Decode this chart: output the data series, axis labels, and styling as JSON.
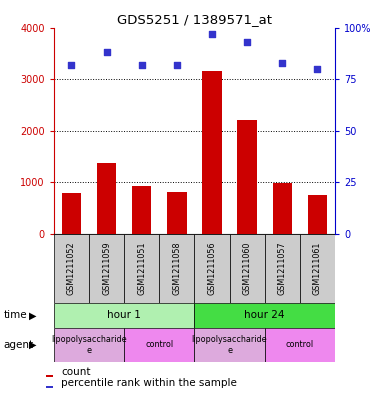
{
  "title": "GDS5251 / 1389571_at",
  "bar_values": [
    800,
    1380,
    930,
    820,
    3150,
    2200,
    990,
    760
  ],
  "percentile_values": [
    82,
    88,
    82,
    82,
    97,
    93,
    83,
    80
  ],
  "sample_labels": [
    "GSM1211052",
    "GSM1211059",
    "GSM1211051",
    "GSM1211058",
    "GSM1211056",
    "GSM1211060",
    "GSM1211057",
    "GSM1211061"
  ],
  "bar_color": "#cc0000",
  "dot_color": "#3333cc",
  "ylim_left": [
    0,
    4000
  ],
  "ylim_right": [
    0,
    100
  ],
  "yticks_left": [
    0,
    1000,
    2000,
    3000,
    4000
  ],
  "yticks_right": [
    0,
    25,
    50,
    75,
    100
  ],
  "time_groups": [
    {
      "label": "hour 1",
      "start": 0,
      "end": 4,
      "color": "#b0f0b0"
    },
    {
      "label": "hour 24",
      "start": 4,
      "end": 8,
      "color": "#44dd44"
    }
  ],
  "agent_groups": [
    {
      "label": "lipopolysaccharide\ne",
      "start": 0,
      "end": 2,
      "color": "#ddaadd"
    },
    {
      "label": "control",
      "start": 2,
      "end": 4,
      "color": "#ee88ee"
    },
    {
      "label": "lipopolysaccharide\ne",
      "start": 4,
      "end": 6,
      "color": "#ddaadd"
    },
    {
      "label": "control",
      "start": 6,
      "end": 8,
      "color": "#ee88ee"
    }
  ],
  "time_label": "time",
  "agent_label": "agent",
  "bar_width": 0.55,
  "background_color": "#ffffff",
  "label_box_color": "#cccccc"
}
